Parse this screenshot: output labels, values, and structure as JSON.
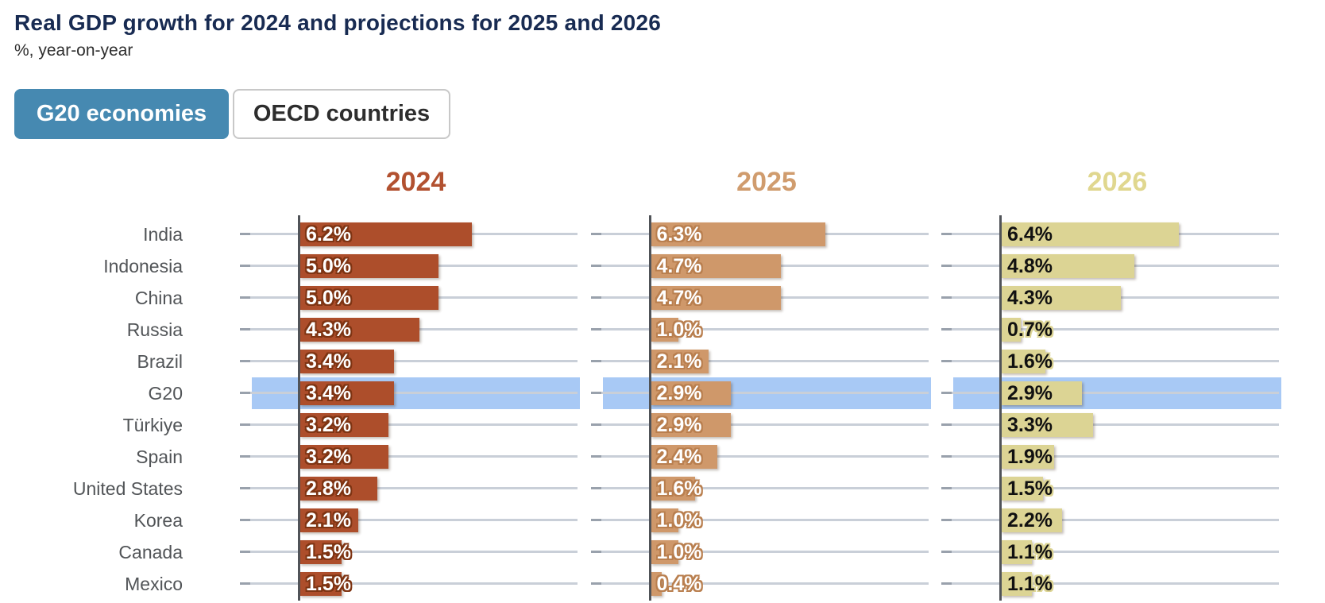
{
  "title": "Real GDP growth for 2024 and projections for 2025 and 2026",
  "subtitle": "%, year-on-year",
  "toggle": {
    "options": [
      "G20 economies",
      "OECD countries"
    ],
    "selected": "G20 economies"
  },
  "chart_data": {
    "type": "bar",
    "orientation": "horizontal",
    "title": "Real GDP growth for 2024 and projections for 2025 and 2026",
    "subtitle": "%, year-on-year",
    "value_suffix": "%",
    "xlim": [
      0,
      10
    ],
    "grid": true,
    "categories": [
      "India",
      "Indonesia",
      "China",
      "Russia",
      "Brazil",
      "G20",
      "Türkiye",
      "Spain",
      "United States",
      "Korea",
      "Canada",
      "Mexico"
    ],
    "highlighted_category": "G20",
    "highlight_color": "#a8c9f5",
    "series": [
      {
        "name": "2024",
        "bar_color": "#ad4e2b",
        "header_color": "#b25130",
        "label_color": "#ffffff",
        "label_outline_color": "#7e3413",
        "values": [
          6.2,
          5.0,
          5.0,
          4.3,
          3.4,
          3.4,
          3.2,
          3.2,
          2.8,
          2.1,
          1.5,
          1.5
        ]
      },
      {
        "name": "2025",
        "bar_color": "#cf986a",
        "header_color": "#d09c6e",
        "label_color": "#ffffff",
        "label_outline_color": "#b97f4f",
        "values": [
          6.3,
          4.7,
          4.7,
          1.0,
          2.1,
          2.9,
          2.9,
          2.4,
          1.6,
          1.0,
          1.0,
          0.4
        ]
      },
      {
        "name": "2026",
        "bar_color": "#dcd494",
        "header_color": "#e0d78f",
        "label_color": "#111111",
        "label_outline_color": "#dcd494",
        "values": [
          6.4,
          4.8,
          4.3,
          0.7,
          1.6,
          2.9,
          3.3,
          1.9,
          1.5,
          2.2,
          1.1,
          1.1
        ]
      }
    ]
  }
}
